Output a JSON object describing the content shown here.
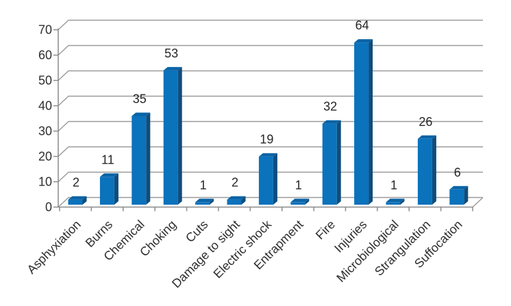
{
  "chart_data": {
    "type": "bar",
    "style": "3d-column",
    "title": "",
    "xlabel": "",
    "ylabel": "",
    "categories": [
      "Asphyxiation",
      "Burns",
      "Chemical",
      "Choking",
      "Cuts",
      "Damage to sight",
      "Electric shock",
      "Entrapment",
      "Fire",
      "Injuries",
      "Microbiological",
      "Strangulation",
      "Suffocation"
    ],
    "values": [
      2,
      11,
      35,
      53,
      1,
      2,
      19,
      1,
      32,
      64,
      1,
      26,
      6
    ],
    "data_labels": [
      2,
      11,
      35,
      53,
      1,
      2,
      19,
      1,
      32,
      64,
      1,
      26,
      6
    ],
    "ylim": [
      0,
      70
    ],
    "yticks": [
      0,
      10,
      20,
      30,
      40,
      50,
      60,
      70
    ],
    "grid": true,
    "legend_position": "none",
    "x_label_rotation_deg": -45
  },
  "colors": {
    "background": "#ffffff",
    "bar_front": "#0b72bc",
    "bar_side": "#0f4d7d",
    "bar_top": "#0a64a6",
    "gridline": "#9a9a9a",
    "axis": "#8a8a8a",
    "tick_label": "#2e2e2e",
    "value_label": "#262626"
  }
}
